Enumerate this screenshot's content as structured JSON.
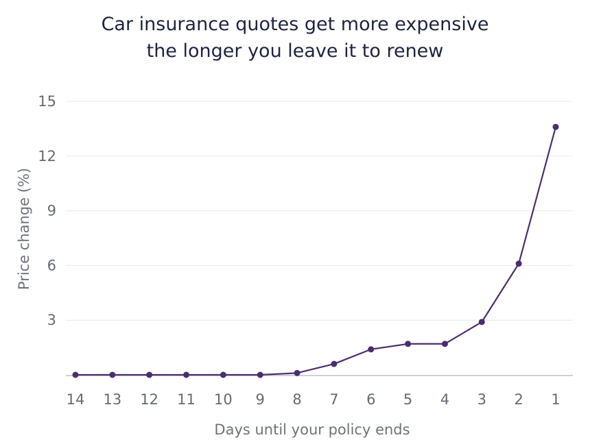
{
  "chart_data": {
    "type": "line",
    "title_lines": [
      "Car insurance quotes get more expensive",
      "the longer you leave it to renew"
    ],
    "xlabel": "Days until your policy ends",
    "ylabel": "Price change (%)",
    "categories": [
      "14",
      "13",
      "12",
      "11",
      "10",
      "9",
      "8",
      "7",
      "6",
      "5",
      "4",
      "3",
      "2",
      "1"
    ],
    "values": [
      0,
      0,
      0,
      0,
      0,
      0,
      0.1,
      0.6,
      1.4,
      1.7,
      1.7,
      2.9,
      6.1,
      13.6
    ],
    "y_ticks": [
      "3",
      "6",
      "9",
      "12",
      "15"
    ],
    "ylim": [
      0,
      15
    ],
    "grid": true,
    "line_color": "#4b2e6e",
    "grid_color": "#e8e8ec"
  }
}
